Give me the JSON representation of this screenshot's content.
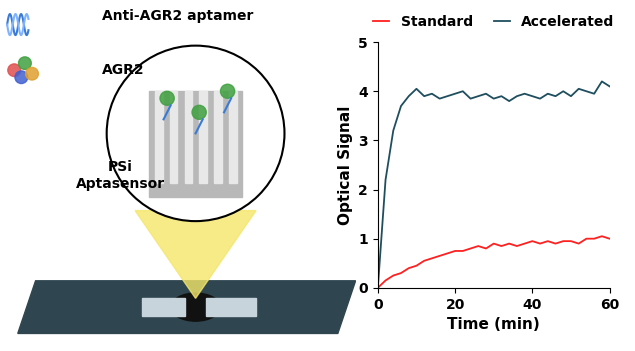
{
  "chart_data": {
    "type": "line",
    "xlabel": "Time (min)",
    "ylabel": "Optical Signal",
    "x": [
      0,
      2,
      4,
      6,
      8,
      10,
      12,
      14,
      16,
      18,
      20,
      22,
      24,
      26,
      28,
      30,
      32,
      34,
      36,
      38,
      40,
      42,
      44,
      46,
      48,
      50,
      52,
      54,
      56,
      58,
      60
    ],
    "series": [
      {
        "name": "Standard",
        "color": "#ff2020",
        "values": [
          0,
          0.15,
          0.25,
          0.3,
          0.4,
          0.45,
          0.55,
          0.6,
          0.65,
          0.7,
          0.75,
          0.75,
          0.8,
          0.85,
          0.8,
          0.9,
          0.85,
          0.9,
          0.85,
          0.9,
          0.95,
          0.9,
          0.95,
          0.9,
          0.95,
          0.95,
          0.9,
          1.0,
          1.0,
          1.05,
          1.0
        ]
      },
      {
        "name": "Accelerated",
        "color": "#1f4e5f",
        "values": [
          0,
          2.2,
          3.2,
          3.7,
          3.9,
          4.05,
          3.9,
          3.95,
          3.85,
          3.9,
          3.95,
          4.0,
          3.85,
          3.9,
          3.95,
          3.85,
          3.9,
          3.8,
          3.9,
          3.95,
          3.9,
          3.85,
          3.95,
          3.9,
          4.0,
          3.9,
          4.05,
          4.0,
          3.95,
          4.2,
          4.1
        ]
      }
    ],
    "xlim": [
      0,
      60
    ],
    "xticks": [
      0,
      20,
      40,
      60
    ],
    "ylim": [
      0,
      5
    ],
    "yticks": [
      0,
      1,
      2,
      3,
      4,
      5
    ],
    "legend": "upper center",
    "grid": false
  },
  "diagram": {
    "labels": {
      "aptamer": "Anti-AGR2 aptamer",
      "protein": "AGR2",
      "sensor": "PSi\nAptasensor"
    }
  }
}
